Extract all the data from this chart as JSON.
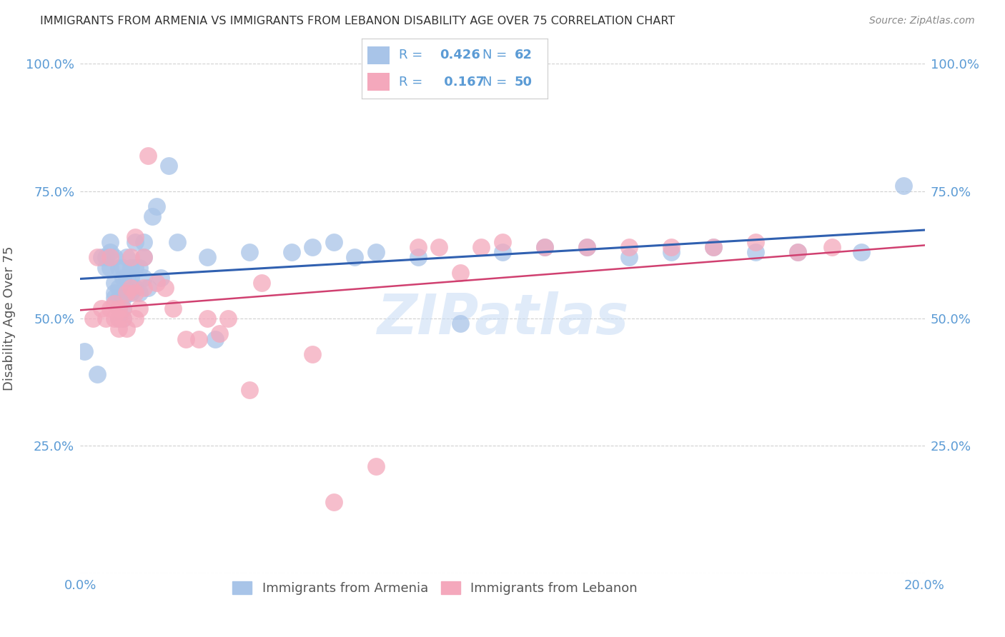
{
  "title": "IMMIGRANTS FROM ARMENIA VS IMMIGRANTS FROM LEBANON DISABILITY AGE OVER 75 CORRELATION CHART",
  "source": "Source: ZipAtlas.com",
  "ylabel": "Disability Age Over 75",
  "xlim": [
    0.0,
    0.2
  ],
  "ylim": [
    0.0,
    1.0
  ],
  "yticks": [
    0.0,
    0.25,
    0.5,
    0.75,
    1.0
  ],
  "ytick_labels": [
    "",
    "25.0%",
    "50.0%",
    "75.0%",
    "100.0%"
  ],
  "xticks": [
    0.0,
    0.05,
    0.1,
    0.15,
    0.2
  ],
  "xtick_labels": [
    "0.0%",
    "",
    "",
    "",
    "20.0%"
  ],
  "armenia_R": 0.426,
  "armenia_N": 62,
  "lebanon_R": 0.167,
  "lebanon_N": 50,
  "armenia_color": "#a8c4e8",
  "armenia_line_color": "#3060b0",
  "lebanon_color": "#f4a8bc",
  "lebanon_line_color": "#d04070",
  "watermark": "ZIPatlas",
  "watermark_color": "#ccdff5",
  "background_color": "#ffffff",
  "grid_color": "#d0d0d0",
  "tick_label_color": "#5b9bd5",
  "title_color": "#333333",
  "source_color": "#888888",
  "ylabel_color": "#555555",
  "legend_text_color": "#5b9bd5",
  "legend_border_color": "#cccccc",
  "bottom_legend_text_color": "#555555",
  "armenia_x": [
    0.001,
    0.004,
    0.005,
    0.006,
    0.006,
    0.007,
    0.007,
    0.007,
    0.008,
    0.008,
    0.008,
    0.008,
    0.009,
    0.009,
    0.009,
    0.009,
    0.009,
    0.01,
    0.01,
    0.01,
    0.01,
    0.01,
    0.011,
    0.011,
    0.011,
    0.012,
    0.012,
    0.012,
    0.013,
    0.013,
    0.013,
    0.014,
    0.014,
    0.015,
    0.015,
    0.015,
    0.016,
    0.017,
    0.018,
    0.019,
    0.021,
    0.023,
    0.03,
    0.032,
    0.04,
    0.05,
    0.055,
    0.06,
    0.065,
    0.07,
    0.08,
    0.09,
    0.1,
    0.11,
    0.12,
    0.13,
    0.14,
    0.15,
    0.16,
    0.17,
    0.185,
    0.195
  ],
  "armenia_y": [
    0.435,
    0.39,
    0.62,
    0.6,
    0.62,
    0.6,
    0.63,
    0.65,
    0.54,
    0.55,
    0.57,
    0.62,
    0.5,
    0.52,
    0.54,
    0.56,
    0.6,
    0.5,
    0.52,
    0.54,
    0.58,
    0.6,
    0.55,
    0.58,
    0.62,
    0.55,
    0.58,
    0.6,
    0.56,
    0.6,
    0.65,
    0.55,
    0.6,
    0.58,
    0.62,
    0.65,
    0.56,
    0.7,
    0.72,
    0.58,
    0.8,
    0.65,
    0.62,
    0.46,
    0.63,
    0.63,
    0.64,
    0.65,
    0.62,
    0.63,
    0.62,
    0.49,
    0.63,
    0.64,
    0.64,
    0.62,
    0.63,
    0.64,
    0.63,
    0.63,
    0.63,
    0.76
  ],
  "lebanon_x": [
    0.003,
    0.004,
    0.005,
    0.006,
    0.007,
    0.007,
    0.008,
    0.008,
    0.009,
    0.009,
    0.009,
    0.01,
    0.01,
    0.011,
    0.011,
    0.012,
    0.012,
    0.013,
    0.013,
    0.013,
    0.014,
    0.015,
    0.015,
    0.016,
    0.018,
    0.02,
    0.022,
    0.025,
    0.028,
    0.03,
    0.033,
    0.035,
    0.04,
    0.043,
    0.055,
    0.06,
    0.07,
    0.08,
    0.085,
    0.09,
    0.095,
    0.1,
    0.11,
    0.12,
    0.13,
    0.14,
    0.15,
    0.16,
    0.17,
    0.178
  ],
  "lebanon_y": [
    0.5,
    0.62,
    0.52,
    0.5,
    0.62,
    0.52,
    0.53,
    0.5,
    0.5,
    0.52,
    0.48,
    0.5,
    0.52,
    0.55,
    0.48,
    0.62,
    0.56,
    0.55,
    0.5,
    0.66,
    0.52,
    0.56,
    0.62,
    0.82,
    0.57,
    0.56,
    0.52,
    0.46,
    0.46,
    0.5,
    0.47,
    0.5,
    0.36,
    0.57,
    0.43,
    0.14,
    0.21,
    0.64,
    0.64,
    0.59,
    0.64,
    0.65,
    0.64,
    0.64,
    0.64,
    0.64,
    0.64,
    0.65,
    0.63,
    0.64
  ]
}
